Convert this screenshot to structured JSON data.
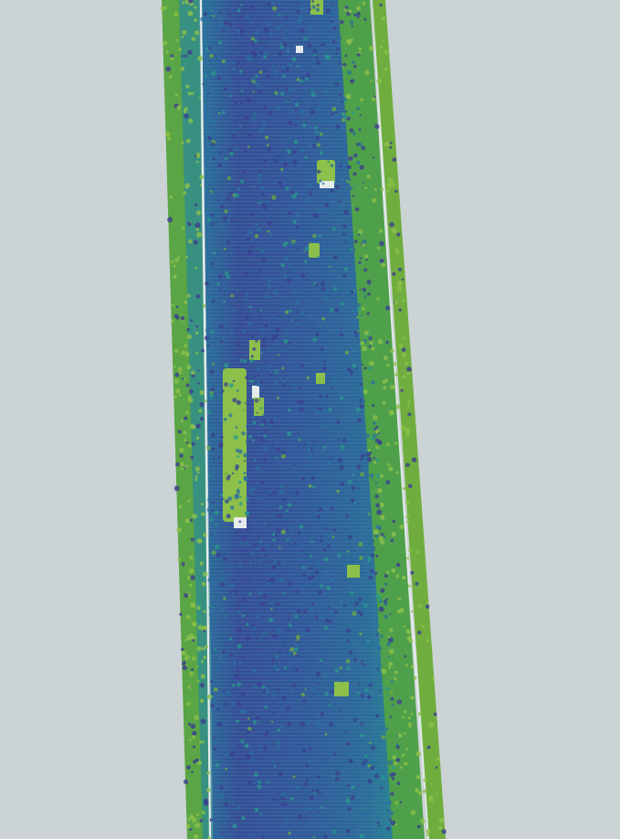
{
  "scene": {
    "kind": "lidar-point-cloud-road",
    "background_color": "#cbd3d4",
    "colormap": "viridis",
    "palette": {
      "road_low": "#3b3f8f",
      "road_mid": "#2c6f9e",
      "road_high": "#2a9a8c",
      "vegetation": "#6fae3e",
      "vegetation_light": "#8cc04a",
      "gap": "#e6ecec"
    }
  }
}
